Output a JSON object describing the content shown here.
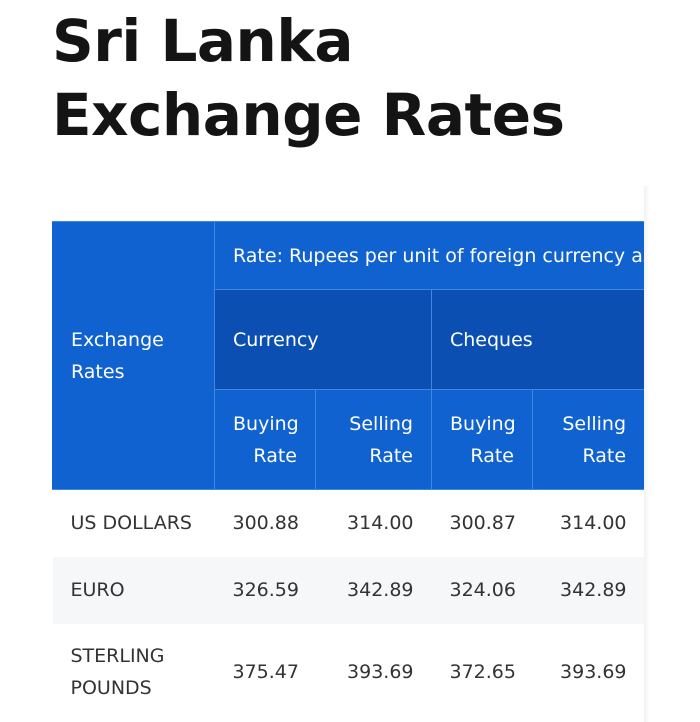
{
  "page": {
    "title": "Sri Lanka Exchange Rates"
  },
  "table": {
    "corner_header": "Exchange Rates",
    "rate_header": "Rate: Rupees per unit of foreign currency as",
    "groups": [
      "Currency",
      "Cheques"
    ],
    "sub_headers": [
      {
        "top": "Buying",
        "bottom": "Rate"
      },
      {
        "top": "Selling",
        "bottom": "Rate"
      },
      {
        "top": "Buying",
        "bottom": "Rate"
      },
      {
        "top": "Selling",
        "bottom": "Rate"
      }
    ],
    "rows": [
      {
        "label": "US DOLLARS",
        "values": [
          "300.88",
          "314.00",
          "300.87",
          "314.00"
        ]
      },
      {
        "label": "EURO",
        "values": [
          "326.59",
          "342.89",
          "324.06",
          "342.89"
        ]
      },
      {
        "label": "STERLING POUNDS",
        "values": [
          "375.47",
          "393.69",
          "372.65",
          "393.69"
        ]
      }
    ],
    "colors": {
      "header_bg": "#0f62cf",
      "group_bg": "#0a4fb1",
      "header_text": "#ffffff",
      "alt_row_bg": "#f6f7f8"
    }
  }
}
